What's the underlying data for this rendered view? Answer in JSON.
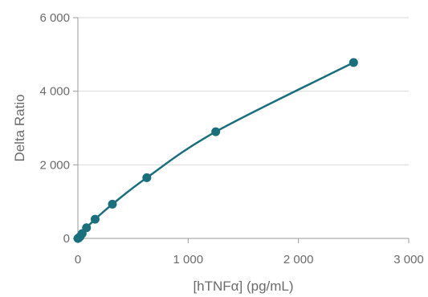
{
  "chart_data": {
    "type": "scatter",
    "xlabel": "[hTNFα] (pg/mL)",
    "ylabel": "Delta Ratio",
    "xlim": [
      0,
      3000
    ],
    "ylim": [
      0,
      6000
    ],
    "x_ticks": [
      0,
      1000,
      2000,
      3000
    ],
    "x_tick_labels": [
      "0",
      "1 000",
      "2 000",
      "3 000"
    ],
    "y_ticks": [
      0,
      2000,
      4000,
      6000
    ],
    "y_tick_labels": [
      "0",
      "2 000",
      "4 000",
      "6 000"
    ],
    "grid": "horizontal",
    "series": [
      {
        "x": [
          0,
          10,
          20,
          39,
          78,
          156,
          313,
          625,
          1250,
          2500
        ],
        "y": [
          0,
          20,
          50,
          130,
          290,
          520,
          930,
          1650,
          2900,
          4780
        ],
        "color": "#1a6f7c",
        "fit_curve": true
      }
    ]
  }
}
